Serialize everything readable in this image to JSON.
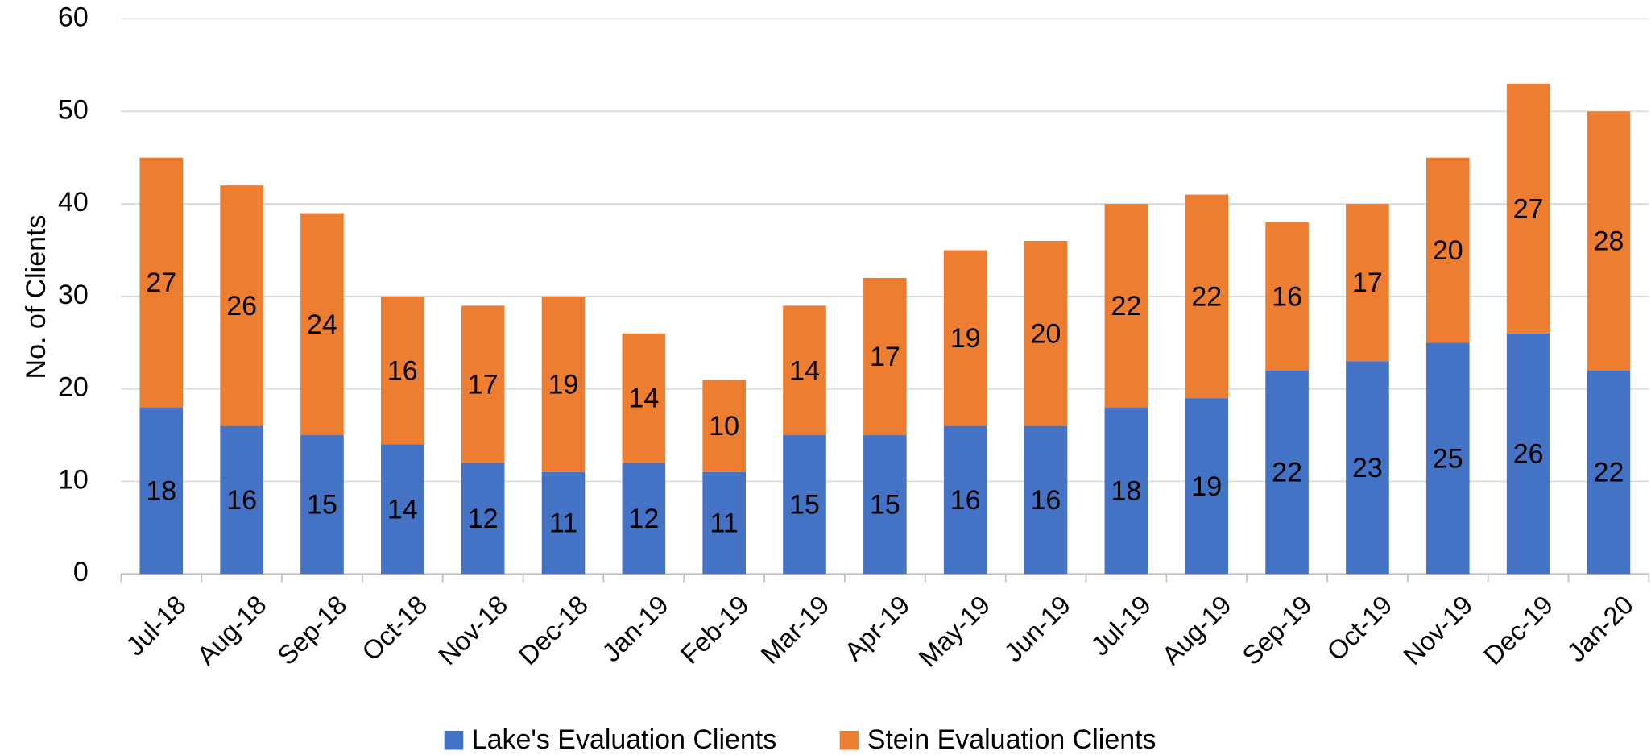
{
  "chart_data": {
    "type": "stacked_bar",
    "y_label": "No. of Clients",
    "categories": [
      "Jul-18",
      "Aug-18",
      "Sep-18",
      "Oct-18",
      "Nov-18",
      "Dec-18",
      "Jan-19",
      "Feb-19",
      "Mar-19",
      "Apr-19",
      "May-19",
      "Jun-19",
      "Jul-19",
      "Aug-19",
      "Sep-19",
      "Oct-19",
      "Nov-19",
      "Dec-19",
      "Jan-20"
    ],
    "series": [
      {
        "name": "Lake's Evaluation Clients",
        "color": "#4472c4",
        "values": [
          18,
          16,
          15,
          14,
          12,
          11,
          12,
          11,
          15,
          15,
          16,
          16,
          18,
          19,
          22,
          23,
          25,
          26,
          22
        ]
      },
      {
        "name": "Stein Evaluation Clients",
        "color": "#ed7d31",
        "values": [
          27,
          26,
          24,
          16,
          17,
          19,
          14,
          10,
          14,
          17,
          19,
          20,
          22,
          22,
          16,
          17,
          20,
          27,
          28
        ]
      }
    ],
    "ylim": [
      0,
      60
    ],
    "yticks": [
      0,
      10,
      20,
      30,
      40,
      50,
      60
    ],
    "grid": true,
    "legend": "bottom"
  }
}
